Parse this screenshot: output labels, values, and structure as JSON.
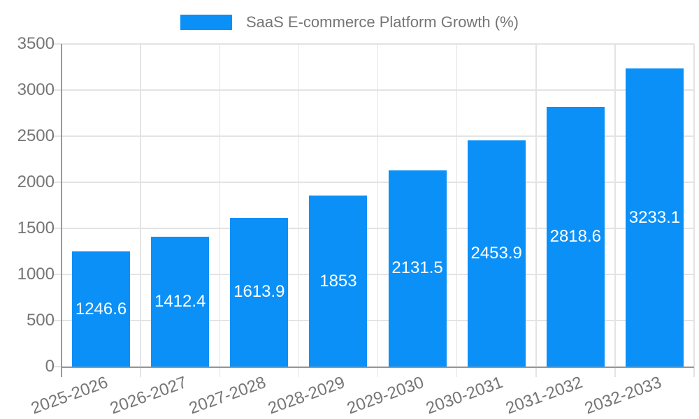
{
  "legend": {
    "label": "SaaS E-commerce Platform Growth (%)"
  },
  "colors": {
    "bar": "#0B90F7",
    "grid": "#e3e3e3",
    "axis": "#999999",
    "tick_text": "#757575",
    "legend_text": "#757575",
    "bar_label": "#ffffff",
    "background": "#ffffff"
  },
  "chart_data": {
    "type": "bar",
    "title": "SaaS E-commerce Platform Growth (%)",
    "categories": [
      "2025-2026",
      "2026-2027",
      "2027-2028",
      "2028-2029",
      "2029-2030",
      "2030-2031",
      "2031-2032",
      "2032-2033"
    ],
    "values": [
      1246.6,
      1412.4,
      1613.9,
      1853,
      2131.5,
      2453.9,
      2818.6,
      3233.1
    ],
    "value_labels": [
      "1246.6",
      "1412.4",
      "1613.9",
      "1853",
      "2131.5",
      "2453.9",
      "2818.6",
      "3233.1"
    ],
    "xlabel": "",
    "ylabel": "",
    "ylim": [
      0,
      3500
    ],
    "yticks": [
      0,
      500,
      1000,
      1500,
      2000,
      2500,
      3000,
      3500
    ],
    "grid": true,
    "legend_position": "top-center",
    "bar_label_position": "center-inside"
  }
}
